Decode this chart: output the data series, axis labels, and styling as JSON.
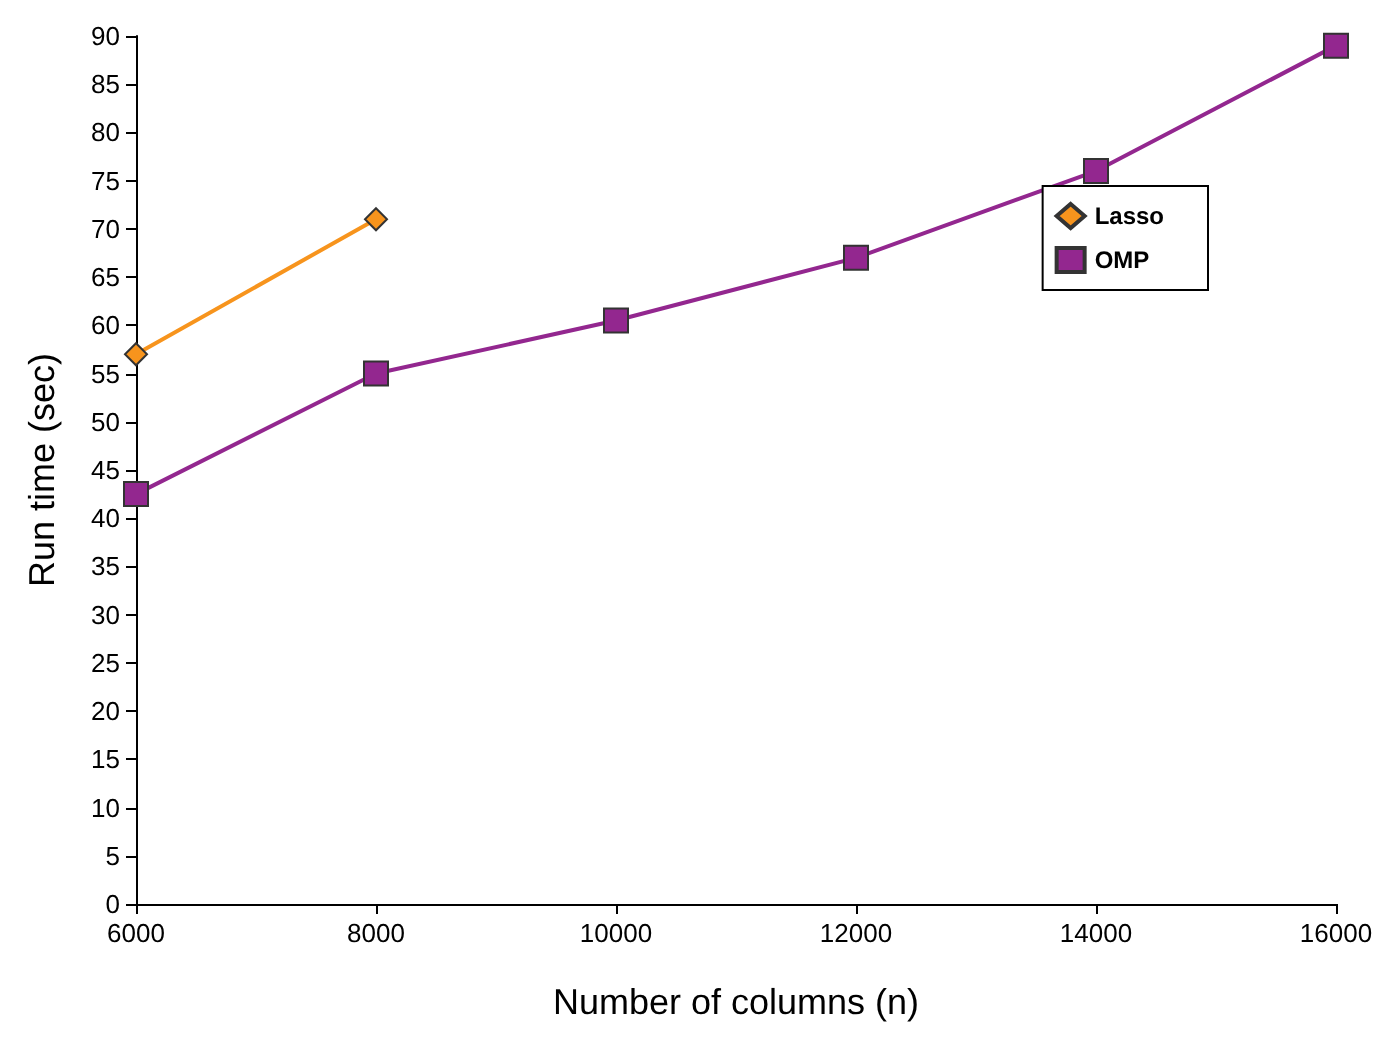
{
  "chart_data": {
    "type": "line",
    "xlabel": "Number of columns (n)",
    "ylabel": "Run time (sec)",
    "xlim": [
      6000,
      16000
    ],
    "xticks": [
      6000,
      8000,
      10000,
      12000,
      14000,
      16000
    ],
    "ylim": [
      0,
      90
    ],
    "yticks": [
      0,
      5,
      10,
      15,
      20,
      25,
      30,
      35,
      40,
      45,
      50,
      55,
      60,
      65,
      70,
      75,
      80,
      85,
      90
    ],
    "grid": false,
    "legend": "top right",
    "line_style": "solid",
    "series": [
      {
        "name": "Lasso",
        "color": "#f7941d",
        "marker": "diamond",
        "x": [
          6000,
          8000
        ],
        "values": [
          57,
          71
        ]
      },
      {
        "name": "OMP",
        "color": "#93278f",
        "marker": "square",
        "x": [
          6000,
          8000,
          10000,
          12000,
          14000,
          16000
        ],
        "values": [
          42.5,
          55,
          60.5,
          67,
          76,
          89
        ]
      }
    ]
  }
}
